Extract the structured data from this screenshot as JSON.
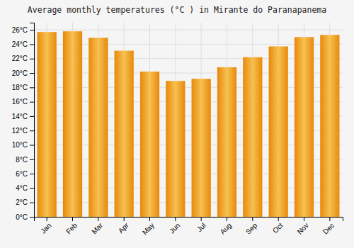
{
  "chart_data": {
    "type": "bar",
    "title": "Average monthly temperatures (°C ) in Mirante do Paranapanema",
    "categories": [
      "Jan",
      "Feb",
      "Mar",
      "Apr",
      "May",
      "Jun",
      "Jul",
      "Aug",
      "Sep",
      "Oct",
      "Nov",
      "Dec"
    ],
    "values": [
      25.7,
      25.8,
      24.9,
      23.1,
      20.2,
      18.9,
      19.2,
      20.8,
      22.2,
      23.7,
      25.0,
      25.3
    ],
    "color": "#E8890A",
    "ylim": [
      0,
      27
    ],
    "yticks": [
      {
        "value": 0,
        "label": "0°C"
      },
      {
        "value": 2,
        "label": "2°C"
      },
      {
        "value": 4,
        "label": "4°C"
      },
      {
        "value": 6,
        "label": "6°C"
      },
      {
        "value": 8,
        "label": "8°C"
      },
      {
        "value": 10,
        "label": "10°C"
      },
      {
        "value": 12,
        "label": "12°C"
      },
      {
        "value": 14,
        "label": "14°C"
      },
      {
        "value": 16,
        "label": "16°C"
      },
      {
        "value": 18,
        "label": "18°C"
      },
      {
        "value": 20,
        "label": "20°C"
      },
      {
        "value": 22,
        "label": "22°C"
      },
      {
        "value": 24,
        "label": "24°C"
      },
      {
        "value": 26,
        "label": "26°C"
      }
    ],
    "grid": true
  }
}
